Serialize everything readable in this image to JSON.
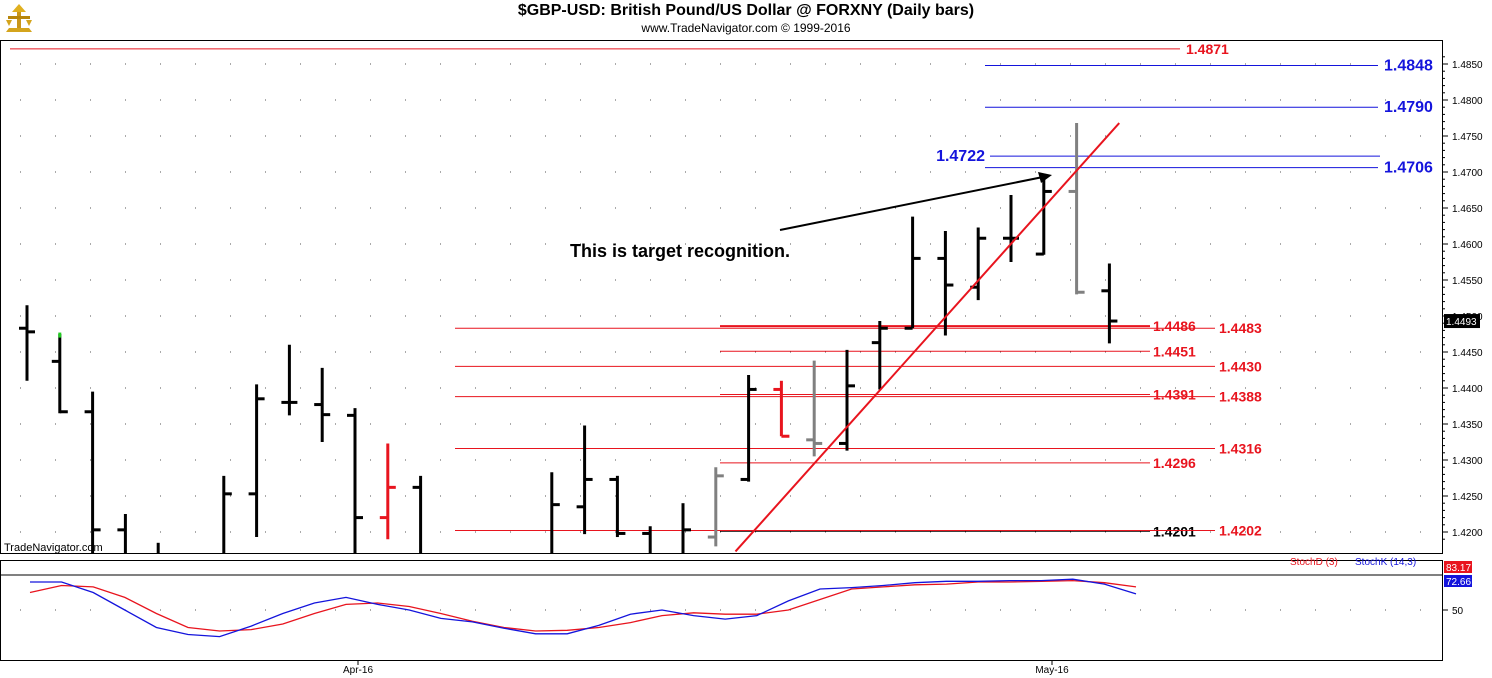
{
  "header": {
    "title": "$GBP-USD:  British Pound/US Dollar @ FORXNY  (Daily bars)",
    "copyright": "www.TradeNavigator.com © 1999-2016"
  },
  "watermark": "TradeNavigator.com",
  "annotation": "This is target recognition.",
  "colors": {
    "up": "#000000",
    "red": "#e8141e",
    "blue": "#1414dc",
    "gray": "#808080",
    "stochD": "#e8141e",
    "stochK": "#1414dc"
  },
  "chart_data": [
    {
      "type": "bar",
      "subtype": "ohlc",
      "ylim": [
        1.4173,
        1.4885
      ],
      "yticks": [
        "1.4200",
        "1.4250",
        "1.4300",
        "1.4350",
        "1.4400",
        "1.4450",
        "1.4500",
        "1.4550",
        "1.4600",
        "1.4650",
        "1.4700",
        "1.4750",
        "1.4800",
        "1.4850"
      ],
      "xticks": [
        "Apr-16",
        "May-16"
      ],
      "last_price": "1.4493",
      "bars": [
        {
          "i": 0,
          "o": 1.4483,
          "h": 1.4515,
          "l": 1.441,
          "c": 1.4478,
          "color": "black"
        },
        {
          "i": 1,
          "o": 1.4437,
          "h": 1.4475,
          "l": 1.4365,
          "c": 1.4367,
          "color": "black"
        },
        {
          "i": 2,
          "o": 1.4367,
          "h": 1.4395,
          "l": 1.413,
          "c": 1.4203,
          "color": "black"
        },
        {
          "i": 3,
          "o": 1.4203,
          "h": 1.4225,
          "l": 1.41,
          "c": 1.416,
          "color": "black"
        },
        {
          "i": 4,
          "o": 1.416,
          "h": 1.4185,
          "l": 1.408,
          "c": 1.411,
          "color": "black"
        },
        {
          "i": 6,
          "o": 1.416,
          "h": 1.4278,
          "l": 1.415,
          "c": 1.4253,
          "color": "black"
        },
        {
          "i": 7,
          "o": 1.4253,
          "h": 1.4405,
          "l": 1.4193,
          "c": 1.4385,
          "color": "black"
        },
        {
          "i": 8,
          "o": 1.438,
          "h": 1.446,
          "l": 1.4362,
          "c": 1.438,
          "color": "black"
        },
        {
          "i": 9,
          "o": 1.4377,
          "h": 1.4428,
          "l": 1.4325,
          "c": 1.4363,
          "color": "black"
        },
        {
          "i": 10,
          "o": 1.4362,
          "h": 1.4372,
          "l": 1.413,
          "c": 1.422,
          "color": "black"
        },
        {
          "i": 11,
          "o": 1.422,
          "h": 1.4323,
          "l": 1.419,
          "c": 1.4262,
          "color": "red"
        },
        {
          "i": 12,
          "o": 1.4262,
          "h": 1.4278,
          "l": 1.414,
          "c": 1.416,
          "color": "black"
        },
        {
          "i": 16,
          "o": 1.416,
          "h": 1.4283,
          "l": 1.413,
          "c": 1.4238,
          "color": "black"
        },
        {
          "i": 17,
          "o": 1.4235,
          "h": 1.4348,
          "l": 1.4197,
          "c": 1.4273,
          "color": "black"
        },
        {
          "i": 18,
          "o": 1.4273,
          "h": 1.4278,
          "l": 1.4193,
          "c": 1.4198,
          "color": "black"
        },
        {
          "i": 19,
          "o": 1.4198,
          "h": 1.4208,
          "l": 1.412,
          "c": 1.417,
          "color": "black"
        },
        {
          "i": 20,
          "o": 1.417,
          "h": 1.424,
          "l": 1.416,
          "c": 1.4203,
          "color": "black"
        },
        {
          "i": 21,
          "o": 1.4193,
          "h": 1.429,
          "l": 1.418,
          "c": 1.4278,
          "color": "gray"
        },
        {
          "i": 22,
          "o": 1.4273,
          "h": 1.4418,
          "l": 1.427,
          "c": 1.4398,
          "color": "black"
        },
        {
          "i": 23,
          "o": 1.4398,
          "h": 1.441,
          "l": 1.4333,
          "c": 1.4333,
          "color": "red"
        },
        {
          "i": 24,
          "o": 1.4328,
          "h": 1.4438,
          "l": 1.4305,
          "c": 1.4323,
          "color": "gray"
        },
        {
          "i": 25,
          "o": 1.4323,
          "h": 1.4453,
          "l": 1.4313,
          "c": 1.4403,
          "color": "black"
        },
        {
          "i": 26,
          "o": 1.4463,
          "h": 1.4493,
          "l": 1.4398,
          "c": 1.4483,
          "color": "black"
        },
        {
          "i": 27,
          "o": 1.4483,
          "h": 1.4638,
          "l": 1.4483,
          "c": 1.458,
          "color": "black"
        },
        {
          "i": 28,
          "o": 1.458,
          "h": 1.4618,
          "l": 1.4473,
          "c": 1.4543,
          "color": "black"
        },
        {
          "i": 29,
          "o": 1.454,
          "h": 1.4623,
          "l": 1.4522,
          "c": 1.4608,
          "color": "black"
        },
        {
          "i": 30,
          "o": 1.4608,
          "h": 1.4668,
          "l": 1.4575,
          "c": 1.4608,
          "color": "black"
        },
        {
          "i": 31,
          "o": 1.4586,
          "h": 1.4698,
          "l": 1.4585,
          "c": 1.4673,
          "color": "black"
        },
        {
          "i": 32,
          "o": 1.4673,
          "h": 1.4768,
          "l": 1.453,
          "c": 1.4533,
          "color": "gray"
        },
        {
          "i": 33,
          "o": 1.4535,
          "h": 1.4573,
          "l": 1.4462,
          "c": 1.4493,
          "color": "black"
        }
      ],
      "levels": [
        {
          "value": 1.4871,
          "label": "1.4871",
          "color": "red",
          "labelpos": "right-red"
        },
        {
          "value": 1.4848,
          "label": "1.4848",
          "color": "blue",
          "labelpos": "right-blue"
        },
        {
          "value": 1.479,
          "label": "1.4790",
          "color": "blue",
          "labelpos": "right-blue"
        },
        {
          "value": 1.4722,
          "label": "1.4722",
          "color": "blue",
          "labelpos": "left-blue"
        },
        {
          "value": 1.4706,
          "label": "1.4706",
          "color": "blue",
          "labelpos": "right-blue"
        },
        {
          "value": 1.4486,
          "label": "1.4486",
          "color": "red",
          "labelpos": "mid"
        },
        {
          "value": 1.4483,
          "label": "1.4483",
          "color": "red",
          "labelpos": "right-red"
        },
        {
          "value": 1.4451,
          "label": "1.4451",
          "color": "red",
          "labelpos": "mid"
        },
        {
          "value": 1.443,
          "label": "1.4430",
          "color": "red",
          "labelpos": "right-red"
        },
        {
          "value": 1.4391,
          "label": "1.4391",
          "color": "red",
          "labelpos": "mid"
        },
        {
          "value": 1.4388,
          "label": "1.4388",
          "color": "red",
          "labelpos": "right-red"
        },
        {
          "value": 1.4316,
          "label": "1.4316",
          "color": "red",
          "labelpos": "right-red"
        },
        {
          "value": 1.4296,
          "label": "1.4296",
          "color": "red",
          "labelpos": "mid"
        },
        {
          "value": 1.4201,
          "label": "1.4201",
          "color": "black",
          "labelpos": "mid"
        },
        {
          "value": 1.4202,
          "label": "1.4202",
          "color": "red",
          "labelpos": "right-red"
        }
      ],
      "trendline": [
        {
          "i": 21.6,
          "v": 1.4173
        },
        {
          "i": 33.3,
          "v": 1.4768
        }
      ]
    },
    {
      "type": "line",
      "ylim": [
        0,
        100
      ],
      "yticks": [
        "50"
      ],
      "series": [
        {
          "name": "StochD (3)",
          "color": "red",
          "last": "83.17",
          "values": [
            75,
            85,
            83,
            68,
            45,
            25,
            20,
            22,
            30,
            45,
            58,
            60,
            55,
            45,
            34,
            25,
            20,
            21,
            25,
            32,
            42,
            46,
            44,
            44,
            50,
            65,
            80,
            83,
            86,
            87,
            90,
            90,
            91,
            92,
            89,
            83
          ]
        },
        {
          "name": "StochK (14,3)",
          "color": "blue",
          "last": "72.66",
          "values": [
            90,
            90,
            75,
            50,
            25,
            15,
            12,
            27,
            45,
            60,
            68,
            58,
            50,
            38,
            33,
            24,
            16,
            16,
            28,
            44,
            50,
            42,
            37,
            42,
            63,
            80,
            82,
            85,
            89,
            91,
            91,
            92,
            92,
            94,
            87,
            73
          ]
        }
      ]
    }
  ]
}
